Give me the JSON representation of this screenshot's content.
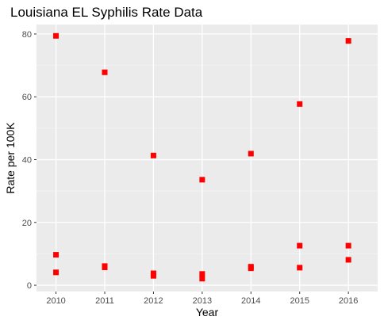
{
  "chart_data": {
    "type": "scatter",
    "title": "Louisiana EL Syphilis Rate Data",
    "xlabel": "Year",
    "ylabel": "Rate per 100K",
    "x_ticks": [
      "2010",
      "2011",
      "2012",
      "2013",
      "2014",
      "2015",
      "2016"
    ],
    "y_ticks": [
      "0",
      "20",
      "40",
      "60",
      "80"
    ],
    "xlim": [
      2009.6,
      2016.6
    ],
    "ylim": [
      -2,
      83
    ],
    "grid": true,
    "legend": "none",
    "marker_shape": "square",
    "marker_color": "#ff0000",
    "panel_color": "#ebebeb",
    "points": [
      {
        "x": 2010,
        "y": 79.4
      },
      {
        "x": 2010,
        "y": 9.7
      },
      {
        "x": 2010,
        "y": 4.1
      },
      {
        "x": 2011,
        "y": 67.8
      },
      {
        "x": 2011,
        "y": 6.1
      },
      {
        "x": 2011,
        "y": 5.7
      },
      {
        "x": 2012,
        "y": 41.3
      },
      {
        "x": 2012,
        "y": 3.8
      },
      {
        "x": 2012,
        "y": 3.0
      },
      {
        "x": 2013,
        "y": 33.6
      },
      {
        "x": 2013,
        "y": 3.6
      },
      {
        "x": 2013,
        "y": 2.1
      },
      {
        "x": 2014,
        "y": 41.9
      },
      {
        "x": 2014,
        "y": 5.9
      },
      {
        "x": 2014,
        "y": 5.4
      },
      {
        "x": 2015,
        "y": 57.7
      },
      {
        "x": 2015,
        "y": 12.6
      },
      {
        "x": 2015,
        "y": 5.6
      },
      {
        "x": 2016,
        "y": 77.8
      },
      {
        "x": 2016,
        "y": 12.6
      },
      {
        "x": 2016,
        "y": 8.1
      }
    ]
  }
}
